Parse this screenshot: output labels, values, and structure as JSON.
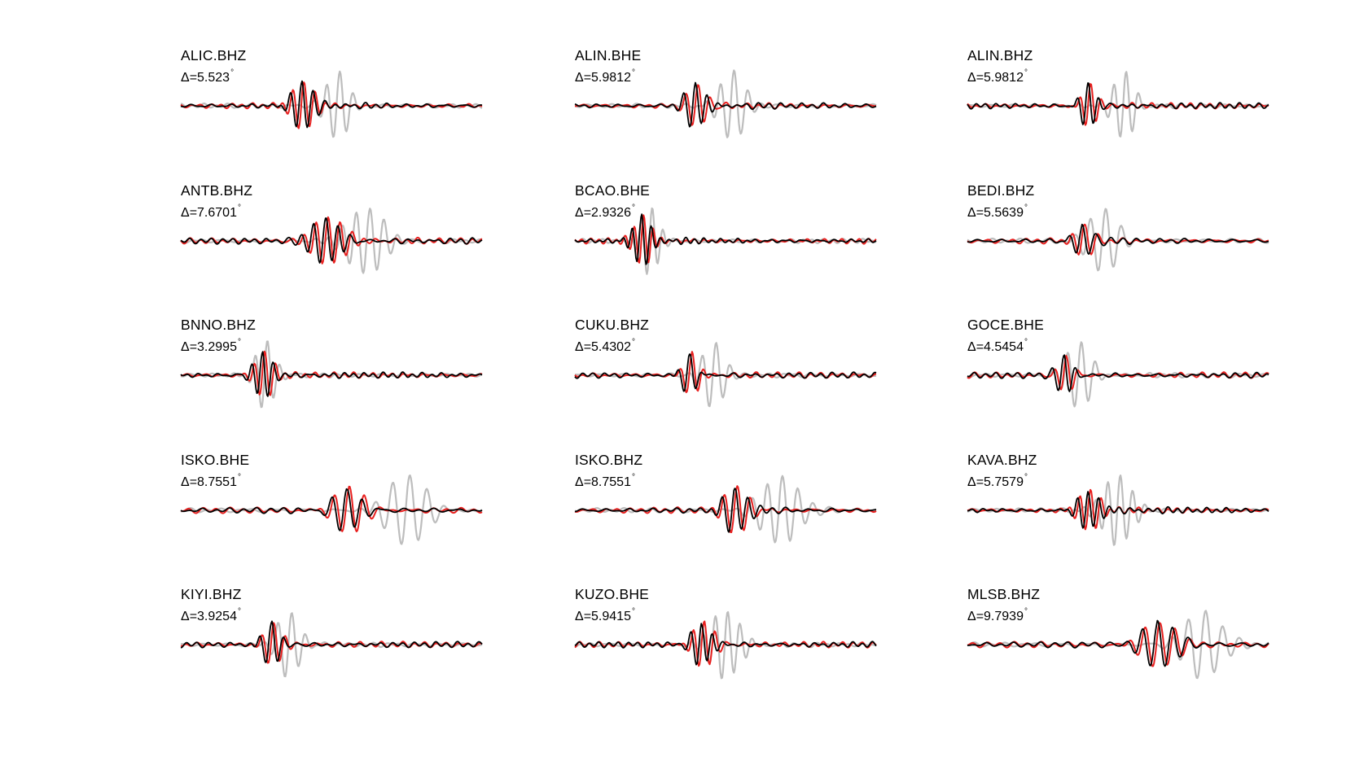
{
  "chart_data": {
    "type": "line",
    "colors": {
      "synthetic_unaligned": "#bdbdbd",
      "data": "#e8201f",
      "synthetic": "#000000"
    },
    "panels": [
      {
        "station": "ALIC.BHZ",
        "distance": "5.523",
        "center": 0.4,
        "gray_center": 0.52,
        "period": 0.038,
        "width": 0.07,
        "gray_width": 0.08,
        "amp": 0.95,
        "gray_amp": 1.4
      },
      {
        "station": "ALIN.BHE",
        "distance": "5.9812",
        "center": 0.4,
        "gray_center": 0.52,
        "period": 0.04,
        "width": 0.07,
        "gray_width": 0.085,
        "amp": 0.95,
        "gray_amp": 1.4
      },
      {
        "station": "ALIN.BHZ",
        "distance": "5.9812",
        "center": 0.4,
        "gray_center": 0.52,
        "period": 0.036,
        "width": 0.05,
        "gray_width": 0.07,
        "amp": 0.95,
        "gray_amp": 1.4
      },
      {
        "station": "ANTB.BHZ",
        "distance": "7.6701",
        "center": 0.48,
        "gray_center": 0.62,
        "period": 0.04,
        "width": 0.11,
        "gray_width": 0.13,
        "amp": 0.95,
        "gray_amp": 1.4
      },
      {
        "station": "BCAO.BHE",
        "distance": "2.9326",
        "center": 0.22,
        "gray_center": 0.25,
        "period": 0.032,
        "width": 0.06,
        "gray_width": 0.06,
        "amp": 0.95,
        "gray_amp": 1.4
      },
      {
        "station": "BEDI.BHZ",
        "distance": "5.5639",
        "center": 0.38,
        "gray_center": 0.45,
        "period": 0.045,
        "width": 0.06,
        "gray_width": 0.1,
        "amp": 0.7,
        "gray_amp": 1.3
      },
      {
        "station": "BNNO.BHZ",
        "distance": "3.2995",
        "center": 0.27,
        "gray_center": 0.28,
        "period": 0.036,
        "width": 0.06,
        "gray_width": 0.06,
        "amp": 0.95,
        "gray_amp": 1.4
      },
      {
        "station": "CUKU.BHZ",
        "distance": "5.4302",
        "center": 0.38,
        "gray_center": 0.46,
        "period": 0.04,
        "width": 0.05,
        "gray_width": 0.08,
        "amp": 0.85,
        "gray_amp": 1.4
      },
      {
        "station": "GOCE.BHE",
        "distance": "4.5454",
        "center": 0.32,
        "gray_center": 0.37,
        "period": 0.04,
        "width": 0.05,
        "gray_width": 0.09,
        "amp": 0.85,
        "gray_amp": 1.4
      },
      {
        "station": "ISKO.BHE",
        "distance": "8.7551",
        "center": 0.55,
        "gray_center": 0.75,
        "period": 0.05,
        "width": 0.1,
        "gray_width": 0.13,
        "amp": 0.95,
        "gray_amp": 1.4
      },
      {
        "station": "ISKO.BHZ",
        "distance": "8.7551",
        "center": 0.53,
        "gray_center": 0.68,
        "period": 0.044,
        "width": 0.08,
        "gray_width": 0.13,
        "amp": 0.95,
        "gray_amp": 1.4
      },
      {
        "station": "KAVA.BHZ",
        "distance": "5.7579",
        "center": 0.4,
        "gray_center": 0.5,
        "period": 0.036,
        "width": 0.07,
        "gray_width": 0.1,
        "amp": 0.8,
        "gray_amp": 1.4
      },
      {
        "station": "KIYI.BHZ",
        "distance": "3.9254",
        "center": 0.3,
        "gray_center": 0.36,
        "period": 0.04,
        "width": 0.06,
        "gray_width": 0.08,
        "amp": 0.85,
        "gray_amp": 1.4
      },
      {
        "station": "KUZO.BHE",
        "distance": "5.9415",
        "center": 0.42,
        "gray_center": 0.5,
        "period": 0.036,
        "width": 0.07,
        "gray_width": 0.1,
        "amp": 0.95,
        "gray_amp": 1.4
      },
      {
        "station": "MLSB.BHZ",
        "distance": "9.7939",
        "center": 0.63,
        "gray_center": 0.78,
        "period": 0.05,
        "width": 0.12,
        "gray_width": 0.13,
        "amp": 0.95,
        "gray_amp": 1.4
      }
    ]
  }
}
